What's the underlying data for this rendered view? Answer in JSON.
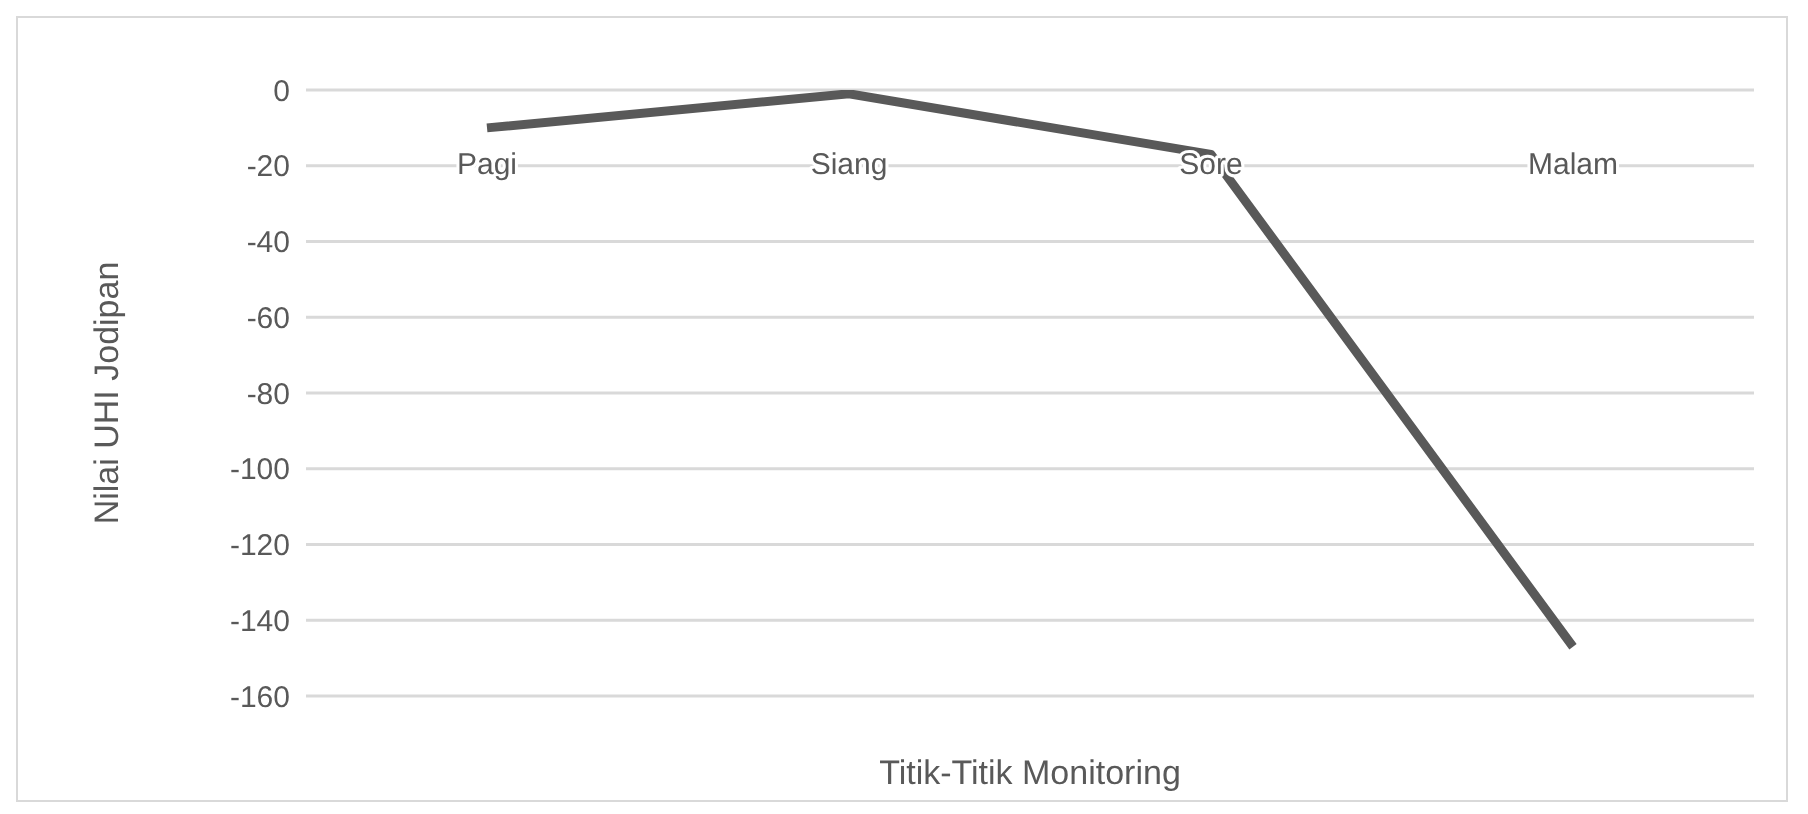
{
  "chart_data": {
    "type": "line",
    "xlabel": "Titik-Titik Monitoring",
    "ylabel": "Nilai UHI Jodipan",
    "categories": [
      "Pagi",
      "Siang",
      "Sore",
      "Malam"
    ],
    "series": [
      {
        "color": "#595959",
        "values": [
          -10,
          -1,
          -17,
          -147
        ]
      }
    ],
    "ylim": [
      -160,
      0
    ],
    "yticks": [
      0,
      -20,
      -40,
      -60,
      -80,
      -100,
      -120,
      -140,
      -160
    ],
    "grid": "y",
    "legend": false,
    "marker": "none",
    "line_style": "solid"
  }
}
